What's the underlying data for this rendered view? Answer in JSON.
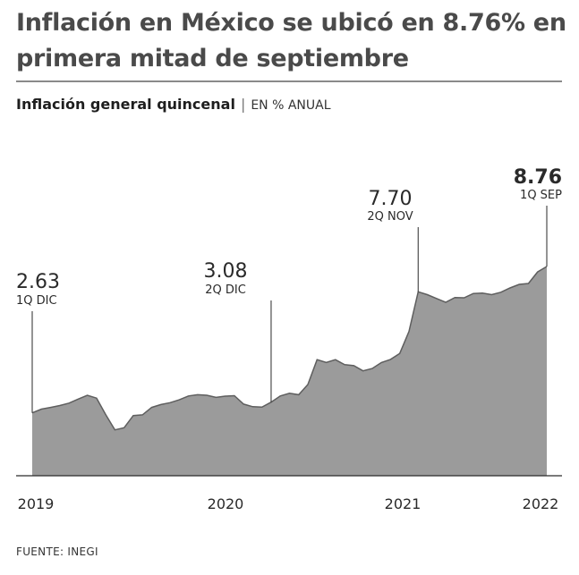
{
  "title": "Inflación en México se ubicó en 8.76% en primera mitad de septiembre",
  "subtitle": {
    "main": "Inflación general quincenal",
    "separator": "|",
    "unit": "EN % ANUAL"
  },
  "source": "FUENTE: INEGI",
  "colors": {
    "area_fill": "#9b9b9b",
    "area_stroke": "#5e5e5e",
    "axis": "#2a2a2a",
    "text": "#2a2a2a"
  },
  "chart_data": {
    "type": "area",
    "x_tick_labels": [
      "2019",
      "2020",
      "2021",
      "2022"
    ],
    "ylim": [
      0,
      10
    ],
    "grid": false,
    "series": [
      {
        "values": [
          2.63,
          2.79,
          2.86,
          2.94,
          3.04,
          3.21,
          3.37,
          3.25,
          2.56,
          1.92,
          2.01,
          2.52,
          2.55,
          2.86,
          2.98,
          3.06,
          3.18,
          3.34,
          3.39,
          3.37,
          3.28,
          3.33,
          3.35,
          3.0,
          2.89,
          2.87,
          3.08,
          3.34,
          3.45,
          3.39,
          3.82,
          4.86,
          4.74,
          4.86,
          4.65,
          4.61,
          4.39,
          4.49,
          4.74,
          4.87,
          5.12,
          6.04,
          7.7,
          7.58,
          7.42,
          7.26,
          7.46,
          7.45,
          7.63,
          7.65,
          7.58,
          7.68,
          7.86,
          8.01,
          8.05,
          8.53,
          8.76
        ]
      }
    ],
    "annotations": [
      {
        "value_label": "2.63",
        "period": "1Q DIC",
        "point_index": 0,
        "emphasis": false
      },
      {
        "value_label": "3.08",
        "period": "2Q DIC",
        "point_index": 26,
        "emphasis": false
      },
      {
        "value_label": "7.70",
        "period": "2Q NOV",
        "point_index": 42,
        "emphasis": false
      },
      {
        "value_label": "8.76",
        "period": "1Q SEP",
        "point_index": 56,
        "emphasis": true
      }
    ]
  }
}
